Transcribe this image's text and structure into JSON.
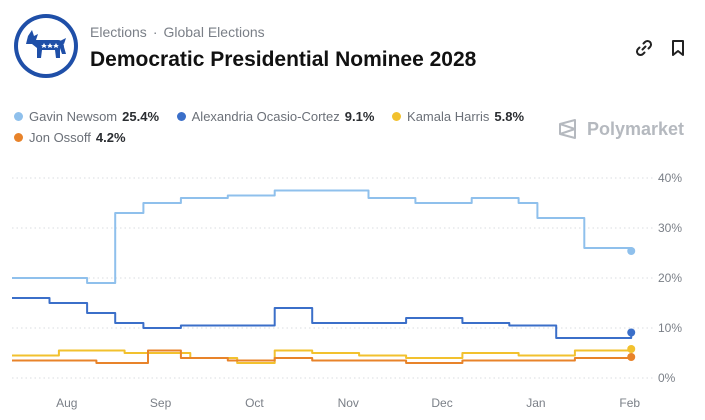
{
  "header": {
    "breadcrumb": [
      "Elections",
      "Global Elections"
    ],
    "separator": "·",
    "title": "Democratic Presidential Nominee 2028",
    "icons": [
      "donkey-logo-icon",
      "link-icon",
      "bookmark-icon"
    ]
  },
  "brand": {
    "name": "Polymarket"
  },
  "legend": [
    {
      "name": "Gavin Newsom",
      "value": "25.4%",
      "color": "#8fc0ec"
    },
    {
      "name": "Alexandria Ocasio-Cortez",
      "value": "9.1%",
      "color": "#3b6fc9"
    },
    {
      "name": "Kamala Harris",
      "value": "5.8%",
      "color": "#f2c12e"
    },
    {
      "name": "Jon Ossoff",
      "value": "4.2%",
      "color": "#e8832a"
    }
  ],
  "chart_data": {
    "type": "line",
    "ylim": [
      0,
      40
    ],
    "yticks": [
      0,
      10,
      20,
      30,
      40
    ],
    "ytick_labels": [
      "0%",
      "10%",
      "20%",
      "30%",
      "40%"
    ],
    "xticks": [
      "Aug",
      "Sep",
      "Oct",
      "Nov",
      "Dec",
      "Jan",
      "Feb"
    ],
    "x": [
      0,
      0.5,
      1,
      1.5,
      2,
      2.5,
      3,
      3.5,
      4,
      4.5,
      5,
      5.5,
      6,
      6.4
    ],
    "grid": "horizontal-dotted",
    "series": [
      {
        "name": "Gavin Newsom",
        "color": "#8fc0ec",
        "values": [
          20,
          20,
          19,
          33,
          35,
          36,
          36.5,
          37.5,
          37.5,
          36,
          35,
          36,
          35,
          32,
          26,
          25.4
        ],
        "x": [
          -0.2,
          0.3,
          0.6,
          0.9,
          1.2,
          1.6,
          2.1,
          2.6,
          3.2,
          3.6,
          4.1,
          4.7,
          5.2,
          5.4,
          5.9,
          6.4
        ]
      },
      {
        "name": "Alexandria Ocasio-Cortez",
        "color": "#3b6fc9",
        "values": [
          16,
          15,
          13,
          11,
          10,
          10.5,
          10.5,
          14,
          11,
          11,
          12,
          11,
          10.5,
          8,
          9.1
        ],
        "x": [
          -0.2,
          0.2,
          0.6,
          0.9,
          1.2,
          1.6,
          2.1,
          2.6,
          3.0,
          3.5,
          4.0,
          4.6,
          5.1,
          5.6,
          6.4
        ]
      },
      {
        "name": "Kamala Harris",
        "color": "#f2c12e",
        "values": [
          4.5,
          5.5,
          5.5,
          5,
          5,
          4,
          3,
          5.5,
          5,
          4.5,
          4,
          5,
          4.5,
          5.5,
          5.8
        ],
        "x": [
          -0.2,
          0.3,
          0.7,
          1.0,
          1.3,
          1.7,
          2.2,
          2.6,
          3.0,
          3.5,
          4.0,
          4.6,
          5.2,
          5.8,
          6.4
        ]
      },
      {
        "name": "Jon Ossoff",
        "color": "#e8832a",
        "values": [
          3.5,
          3.5,
          3,
          3,
          5.5,
          4,
          3.5,
          4,
          3.5,
          3.5,
          3,
          3.5,
          3.5,
          4,
          4.2
        ],
        "x": [
          -0.2,
          0.3,
          0.7,
          1.0,
          1.25,
          1.6,
          2.1,
          2.6,
          3.0,
          3.5,
          4.0,
          4.6,
          5.2,
          5.8,
          6.4
        ]
      }
    ]
  }
}
